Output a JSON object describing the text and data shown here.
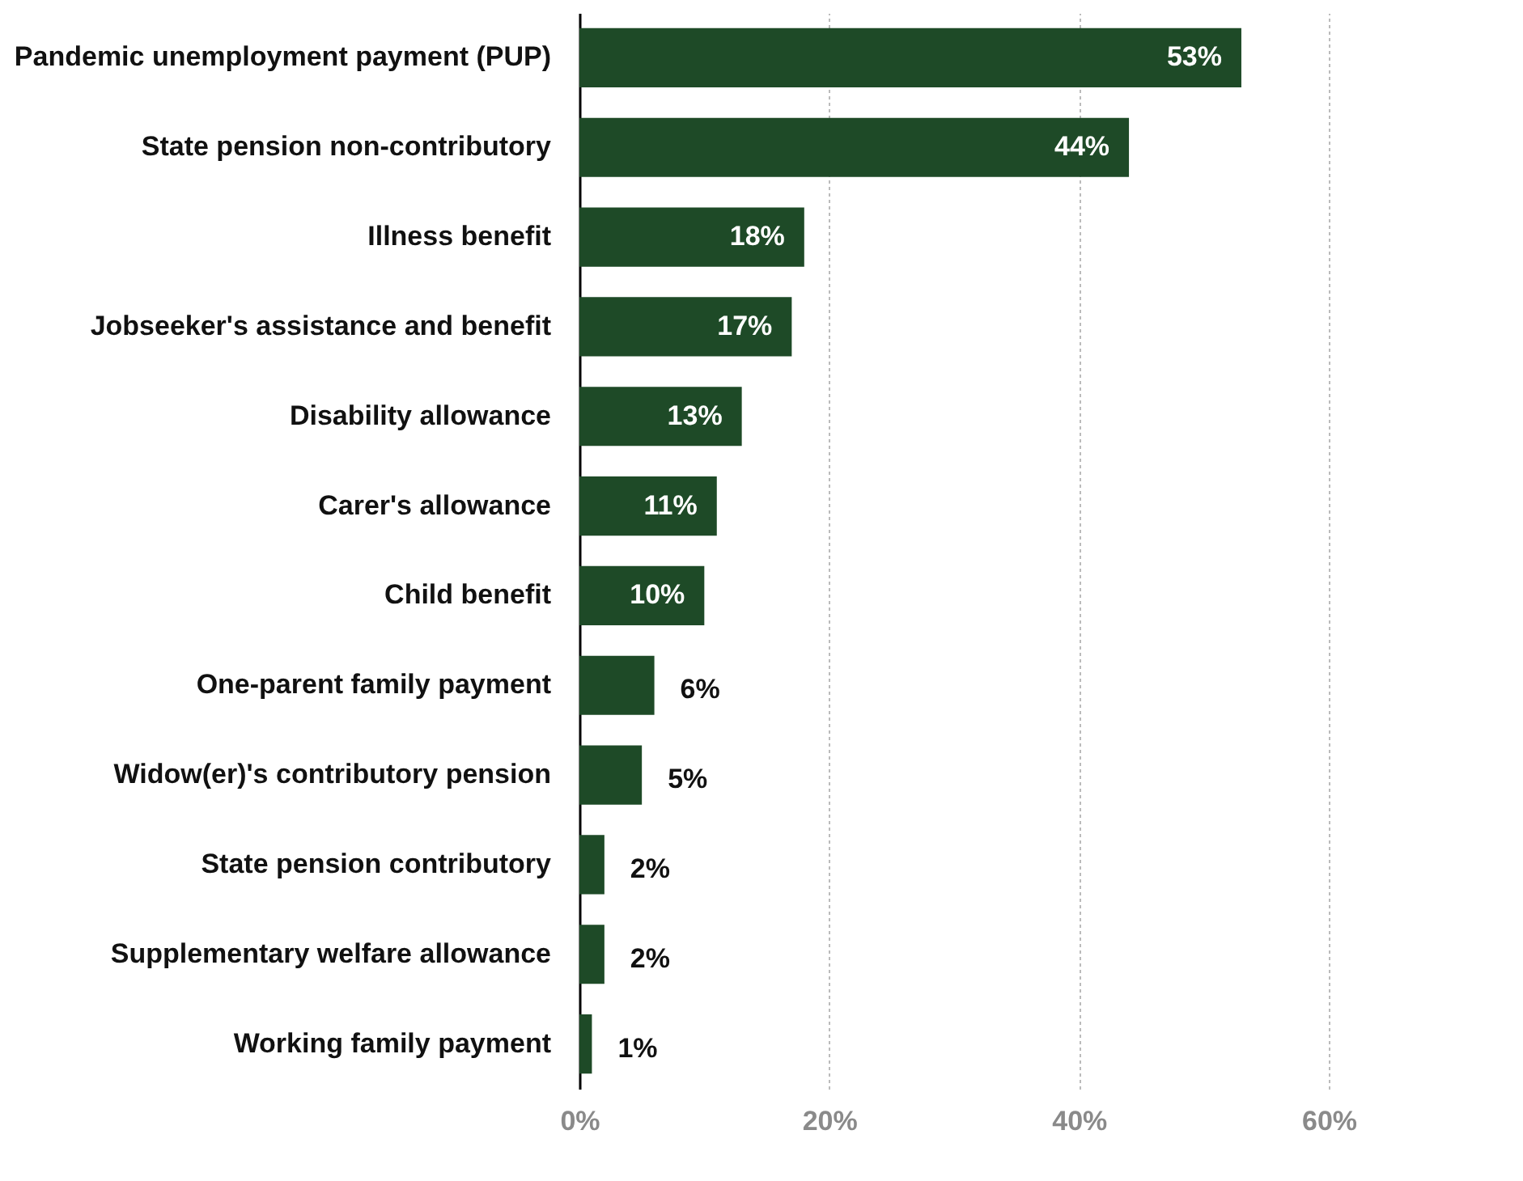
{
  "chart_data": {
    "type": "bar",
    "orientation": "horizontal",
    "categories": [
      "Pandemic unemployment payment (PUP)",
      "State pension non-contributory",
      "Illness benefit",
      "Jobseeker's assistance and benefit",
      "Disability allowance",
      "Carer's allowance",
      "Child benefit",
      "One-parent family payment",
      "Widow(er)'s contributory pension",
      "State pension contributory",
      "Supplementary welfare allowance",
      "Working family payment"
    ],
    "values": [
      53,
      44,
      18,
      17,
      13,
      11,
      10,
      6,
      5,
      2,
      2,
      1
    ],
    "value_labels": [
      "53%",
      "44%",
      "18%",
      "17%",
      "13%",
      "11%",
      "10%",
      "6%",
      "5%",
      "2%",
      "2%",
      "1%"
    ],
    "color": "#1e4a27",
    "xlim": [
      0,
      60
    ],
    "xticks": [
      {
        "value": 0,
        "label": "0%"
      },
      {
        "value": 20,
        "label": "20%"
      },
      {
        "value": 40,
        "label": "40%"
      },
      {
        "value": 60,
        "label": "60%"
      }
    ],
    "grid": "x"
  }
}
